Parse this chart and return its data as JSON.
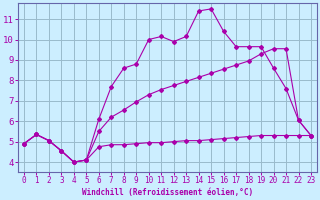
{
  "xlabel": "Windchill (Refroidissement éolien,°C)",
  "bg_color": "#cceeff",
  "line_color": "#aa00aa",
  "grid_color": "#99bbcc",
  "spine_color": "#6666aa",
  "xlim": [
    -0.5,
    23.5
  ],
  "ylim": [
    3.5,
    11.8
  ],
  "xticks": [
    0,
    1,
    2,
    3,
    4,
    5,
    6,
    7,
    8,
    9,
    10,
    11,
    12,
    13,
    14,
    15,
    16,
    17,
    18,
    19,
    20,
    21,
    22,
    23
  ],
  "yticks": [
    4,
    5,
    6,
    7,
    8,
    9,
    10,
    11
  ],
  "line1_x": [
    0,
    1,
    2,
    3,
    4,
    5,
    6,
    7,
    8,
    9,
    10,
    11,
    12,
    13,
    14,
    15,
    16,
    17,
    18,
    19,
    20,
    21,
    22,
    23
  ],
  "line1_y": [
    4.9,
    5.35,
    5.05,
    4.55,
    4.0,
    4.1,
    4.75,
    4.85,
    4.85,
    4.9,
    4.95,
    4.95,
    5.0,
    5.05,
    5.05,
    5.1,
    5.15,
    5.2,
    5.25,
    5.3,
    5.3,
    5.3,
    5.3,
    5.3
  ],
  "line2_x": [
    0,
    1,
    2,
    3,
    4,
    5,
    6,
    7,
    8,
    9,
    10,
    11,
    12,
    13,
    14,
    15,
    16,
    17,
    18,
    19,
    20,
    21,
    22,
    23
  ],
  "line2_y": [
    4.9,
    5.35,
    5.05,
    4.55,
    4.0,
    4.1,
    6.1,
    7.7,
    8.6,
    8.8,
    10.0,
    10.15,
    9.9,
    10.15,
    11.4,
    11.5,
    10.4,
    9.65,
    9.65,
    9.65,
    8.6,
    7.6,
    6.05,
    5.3
  ],
  "line3_x": [
    0,
    1,
    2,
    3,
    4,
    5,
    6,
    7,
    8,
    9,
    10,
    11,
    12,
    13,
    14,
    15,
    16,
    17,
    18,
    19,
    20,
    21,
    22,
    23
  ],
  "line3_y": [
    4.9,
    5.35,
    5.05,
    4.55,
    4.0,
    4.1,
    5.5,
    6.2,
    6.55,
    6.95,
    7.3,
    7.55,
    7.75,
    7.95,
    8.15,
    8.35,
    8.55,
    8.75,
    8.95,
    9.3,
    9.55,
    9.55,
    6.05,
    5.3
  ]
}
